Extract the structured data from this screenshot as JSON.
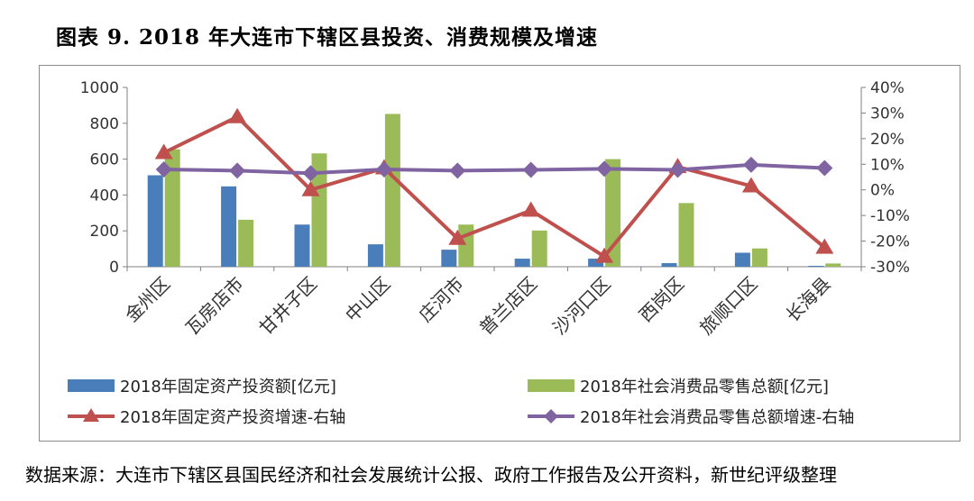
{
  "title": "图表 9. 2018 年大连市下辖区县投资、消费规模及增速",
  "source": "数据来源：大连市下辖区县国民经济和社会发展统计公报、政府工作报告及公开资料，新世纪评级整理",
  "chart_data": {
    "type": "bar",
    "categories": [
      "金州区",
      "瓦房店市",
      "甘井子区",
      "中山区",
      "庄河市",
      "普兰店区",
      "沙河口区",
      "西岗区",
      "旅顺口区",
      "长海县"
    ],
    "left_axis": {
      "ylim": [
        0,
        1000
      ],
      "ticks": [
        "0",
        "200",
        "400",
        "600",
        "800",
        "1000"
      ]
    },
    "right_axis": {
      "ylim": [
        -30,
        40
      ],
      "ticks": [
        "-30%",
        "-20%",
        "-10%",
        "0%",
        "10%",
        "20%",
        "30%",
        "40%"
      ]
    },
    "series": [
      {
        "name": "2018年固定资产投资额[亿元]",
        "type": "bar",
        "axis": "left",
        "color": "#4a7ebb",
        "values": [
          510,
          448,
          235,
          125,
          95,
          45,
          45,
          20,
          78,
          5
        ]
      },
      {
        "name": "2018年社会消费品零售总额[亿元]",
        "type": "bar",
        "axis": "left",
        "color": "#9bbb59",
        "values": [
          655,
          262,
          632,
          852,
          235,
          202,
          600,
          355,
          102,
          18
        ]
      },
      {
        "name": "2018年固定资产投资增速-右轴",
        "type": "line",
        "axis": "right",
        "color": "#c0504d",
        "marker": "triangle",
        "values": [
          14.5,
          28.5,
          0,
          8.5,
          -19,
          -8,
          -26,
          9,
          1.5,
          -22.5
        ]
      },
      {
        "name": "2018年社会消费品零售总额增速-右轴",
        "type": "line",
        "axis": "right",
        "color": "#8064a2",
        "marker": "diamond",
        "values": [
          8,
          7.5,
          6.5,
          8,
          7.5,
          7.8,
          8.2,
          7.8,
          9.8,
          8.5
        ]
      }
    ],
    "legend_position": "bottom",
    "grid": false
  }
}
